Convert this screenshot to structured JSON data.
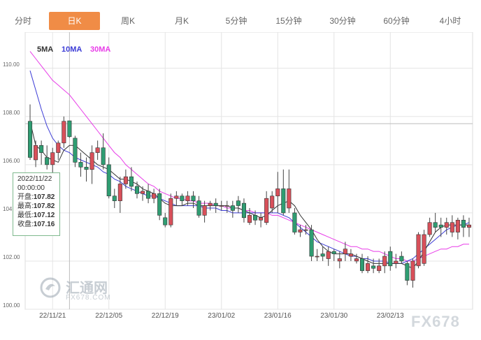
{
  "tabs": [
    {
      "label": "分时",
      "active": false
    },
    {
      "label": "日K",
      "active": true
    },
    {
      "label": "周K",
      "active": false
    },
    {
      "label": "月K",
      "active": false
    },
    {
      "label": "5分钟",
      "active": false
    },
    {
      "label": "15分钟",
      "active": false
    },
    {
      "label": "30分钟",
      "active": false
    },
    {
      "label": "60分钟",
      "active": false
    },
    {
      "label": "4小时",
      "active": false
    }
  ],
  "legend": {
    "ma5": "5MA",
    "ma10": "10MA",
    "ma30": "30MA"
  },
  "tooltip": {
    "date": "2022/11/22",
    "time": "00:00:00",
    "open_label": "开盘:",
    "open": "107.82",
    "high_label": "最高:",
    "high": "107.82",
    "low_label": "最低:",
    "low": "107.12",
    "close_label": "收盘:",
    "close": "107.16"
  },
  "watermark": {
    "cn": "汇通网",
    "en": "FX678.COM"
  },
  "brand": "FX678",
  "colors": {
    "up": "#d8505a",
    "down": "#2f9d72",
    "ma5": "#333333",
    "ma10": "#3b3bd6",
    "ma30": "#e83ce8",
    "grid": "#e4e4e4"
  },
  "chart_data": {
    "type": "candlestick",
    "ylim": [
      100,
      111.5
    ],
    "y_ticks": [
      "100.00",
      "102.00",
      "104.00",
      "106.00",
      "108.00",
      "110.00"
    ],
    "x_tick_labels": [
      "22/11/21",
      "22/12/05",
      "22/12/19",
      "23/01/02",
      "23/01/16",
      "23/01/30",
      "23/02/13"
    ],
    "x_tick_index": [
      4,
      14,
      24,
      34,
      44,
      54,
      64
    ],
    "reference_line": 107.7,
    "candles": [
      [
        107.8,
        106.3,
        108.5,
        106.2
      ],
      [
        106.2,
        106.8,
        107.0,
        105.9
      ],
      [
        106.8,
        106.5,
        107.0,
        106.0
      ],
      [
        106.3,
        106.0,
        106.8,
        105.8
      ],
      [
        106.0,
        106.5,
        106.7,
        105.6
      ],
      [
        106.5,
        106.9,
        107.0,
        106.2
      ],
      [
        106.9,
        107.8,
        108.0,
        106.7
      ],
      [
        107.82,
        107.16,
        107.82,
        107.12
      ],
      [
        107.1,
        106.1,
        107.2,
        105.9
      ],
      [
        106.1,
        105.9,
        106.5,
        105.5
      ],
      [
        105.9,
        105.8,
        106.3,
        105.3
      ],
      [
        105.8,
        106.5,
        106.8,
        105.2
      ],
      [
        106.5,
        106.7,
        107.0,
        106.2
      ],
      [
        106.7,
        106.0,
        107.3,
        105.8
      ],
      [
        106.0,
        104.7,
        106.3,
        104.6
      ],
      [
        104.7,
        104.5,
        105.0,
        104.2
      ],
      [
        104.5,
        105.2,
        105.5,
        104.0
      ],
      [
        105.2,
        105.5,
        105.8,
        105.0
      ],
      [
        105.5,
        105.1,
        105.9,
        104.9
      ],
      [
        105.1,
        104.8,
        105.3,
        104.6
      ],
      [
        104.8,
        104.9,
        105.1,
        104.5
      ],
      [
        104.9,
        104.6,
        105.2,
        104.4
      ],
      [
        104.6,
        104.8,
        105.0,
        104.4
      ],
      [
        104.8,
        103.9,
        105.0,
        103.7
      ],
      [
        103.8,
        103.5,
        104.0,
        103.4
      ],
      [
        103.5,
        104.6,
        104.8,
        103.4
      ],
      [
        104.6,
        104.7,
        104.9,
        104.3
      ],
      [
        104.7,
        104.5,
        104.8,
        104.3
      ],
      [
        104.5,
        104.7,
        104.9,
        104.3
      ],
      [
        104.7,
        104.5,
        104.9,
        104.2
      ],
      [
        104.5,
        103.9,
        104.7,
        103.8
      ],
      [
        103.9,
        104.3,
        104.5,
        103.6
      ],
      [
        104.3,
        104.4,
        104.5,
        104.1
      ],
      [
        104.4,
        104.3,
        104.6,
        104.0
      ],
      [
        104.3,
        104.3,
        104.5,
        104.1
      ],
      [
        104.3,
        104.3,
        104.5,
        104.0
      ],
      [
        104.3,
        104.1,
        104.5,
        103.8
      ],
      [
        104.5,
        104.3,
        104.7,
        104.0
      ],
      [
        104.4,
        103.8,
        104.6,
        103.6
      ],
      [
        103.6,
        103.9,
        104.2,
        103.5
      ],
      [
        103.9,
        103.7,
        104.1,
        103.5
      ],
      [
        103.7,
        103.8,
        104.0,
        103.4
      ],
      [
        103.6,
        104.6,
        104.9,
        103.5
      ],
      [
        104.2,
        104.7,
        104.9,
        104.0
      ],
      [
        104.7,
        105.0,
        105.7,
        104.0
      ],
      [
        105.0,
        104.0,
        105.8,
        103.9
      ],
      [
        104.2,
        105.0,
        105.8,
        104.0
      ],
      [
        104.0,
        103.2,
        104.2,
        103.1
      ],
      [
        103.2,
        103.3,
        103.5,
        103.0
      ],
      [
        103.3,
        103.3,
        103.5,
        103.1
      ],
      [
        103.3,
        102.2,
        103.5,
        102.0
      ],
      [
        102.2,
        102.2,
        102.5,
        102.0
      ],
      [
        102.3,
        102.2,
        102.6,
        102.0
      ],
      [
        102.1,
        102.4,
        102.6,
        101.8
      ],
      [
        102.4,
        102.3,
        102.5,
        102.0
      ],
      [
        102.0,
        102.1,
        102.4,
        101.7
      ],
      [
        102.3,
        102.5,
        102.8,
        102.0
      ],
      [
        102.2,
        102.3,
        102.5,
        102.0
      ],
      [
        102.0,
        102.1,
        102.3,
        101.9
      ],
      [
        102.1,
        101.6,
        102.3,
        101.5
      ],
      [
        101.6,
        101.9,
        102.2,
        101.5
      ],
      [
        101.8,
        101.7,
        102.1,
        101.5
      ],
      [
        101.6,
        101.8,
        102.1,
        101.5
      ],
      [
        101.8,
        102.2,
        102.4,
        101.5
      ],
      [
        102.4,
        101.8,
        102.6,
        101.6
      ],
      [
        101.9,
        102.0,
        102.3,
        101.7
      ],
      [
        102.2,
        102.0,
        102.4,
        101.9
      ],
      [
        101.9,
        101.2,
        102.0,
        101.0
      ],
      [
        101.2,
        102.0,
        102.1,
        100.9
      ],
      [
        101.8,
        103.1,
        103.2,
        101.7
      ],
      [
        101.9,
        103.1,
        103.3,
        101.8
      ],
      [
        103.1,
        103.6,
        103.8,
        103.0
      ],
      [
        103.6,
        103.4,
        104.0,
        103.2
      ],
      [
        103.5,
        103.4,
        103.8,
        103.0
      ],
      [
        103.4,
        103.6,
        103.8,
        103.1
      ],
      [
        103.2,
        103.6,
        103.9,
        103.0
      ],
      [
        103.2,
        103.7,
        103.8,
        102.9
      ],
      [
        103.7,
        103.4,
        103.9,
        103.0
      ],
      [
        103.4,
        103.5,
        103.8,
        103.0
      ]
    ],
    "ma5": [
      107.8,
      106.8,
      106.6,
      106.3,
      106.2,
      106.1,
      106.6,
      106.8,
      106.8,
      106.6,
      106.4,
      106.2,
      106.0,
      105.9,
      105.8,
      105.6,
      105.4,
      105.4,
      105.3,
      105.2,
      105.0,
      104.9,
      104.8,
      104.6,
      104.4,
      104.3,
      104.3,
      104.3,
      104.4,
      104.4,
      104.3,
      104.3,
      104.3,
      104.3,
      104.3,
      104.3,
      104.2,
      104.2,
      104.1,
      104.0,
      103.9,
      103.8,
      103.9,
      104.1,
      104.3,
      104.4,
      104.5,
      104.3,
      103.9,
      103.6,
      103.3,
      102.9,
      102.6,
      102.4,
      102.3,
      102.3,
      102.3,
      102.3,
      102.2,
      102.1,
      102.0,
      101.9,
      101.9,
      101.9,
      101.9,
      101.9,
      101.9,
      101.8,
      101.7,
      102.0,
      102.4,
      102.8,
      103.2,
      103.4,
      103.5,
      103.5,
      103.5,
      103.5,
      103.5
    ],
    "ma10": [
      109.9,
      109.1,
      108.3,
      107.6,
      107.1,
      106.8,
      106.6,
      106.5,
      106.3,
      106.2,
      106.1,
      106.0,
      105.9,
      105.7,
      105.6,
      105.4,
      105.3,
      105.1,
      105.0,
      104.9,
      104.8,
      104.7,
      104.7,
      104.6,
      104.5,
      104.4,
      104.3,
      104.3,
      104.3,
      104.3,
      104.3,
      104.2,
      104.2,
      104.2,
      104.1,
      104.1,
      104.0,
      104.0,
      104.0,
      104.0,
      104.0,
      104.0,
      104.0,
      104.0,
      104.0,
      103.9,
      103.8,
      103.6,
      103.4,
      103.2,
      103.0,
      102.8,
      102.7,
      102.6,
      102.5,
      102.4,
      102.3,
      102.2,
      102.2,
      102.1,
      102.1,
      102.0,
      102.0,
      102.0,
      101.9,
      101.9,
      101.9,
      102.0,
      102.1,
      102.3,
      102.5,
      102.7,
      102.9,
      103.1,
      103.3,
      103.4,
      103.5,
      103.5,
      103.6
    ],
    "ma30": [
      110.7,
      110.4,
      110.1,
      109.8,
      109.5,
      109.3,
      109.1,
      108.9,
      108.6,
      108.3,
      108.0,
      107.7,
      107.4,
      107.1,
      106.8,
      106.5,
      106.3,
      106.0,
      105.8,
      105.6,
      105.4,
      105.2,
      105.1,
      104.9,
      104.8,
      104.7,
      104.6,
      104.6,
      104.5,
      104.5,
      104.4,
      104.4,
      104.4,
      104.3,
      104.3,
      104.2,
      104.2,
      104.2,
      104.1,
      104.1,
      104.0,
      104.0,
      104.0,
      103.9,
      103.9,
      103.8,
      103.7,
      103.6,
      103.5,
      103.4,
      103.3,
      103.2,
      103.1,
      103.0,
      102.9,
      102.8,
      102.7,
      102.6,
      102.6,
      102.5,
      102.5,
      102.4,
      102.4,
      102.3,
      102.2,
      102.1,
      102.1,
      102.0,
      102.0,
      102.1,
      102.2,
      102.3,
      102.4,
      102.5,
      102.5,
      102.6,
      102.6,
      102.7,
      102.7
    ]
  }
}
